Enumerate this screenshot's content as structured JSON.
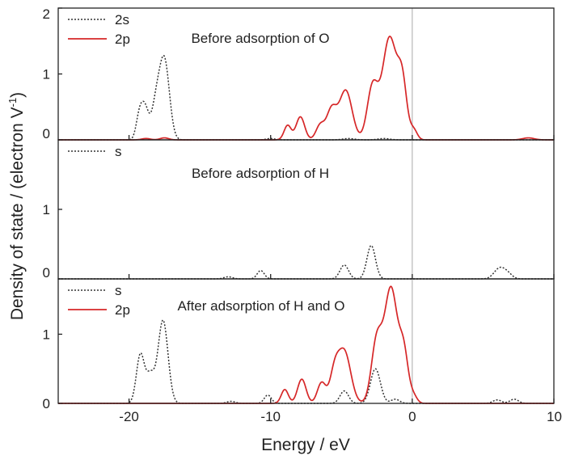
{
  "chart_data": {
    "type": "line",
    "xlabel": "Energy / eV",
    "ylabel": "Density of state / (electron V",
    "ylabel_sup": "-1",
    "ylabel_close": ")",
    "xlim": [
      -25,
      10
    ],
    "x_ticks": [
      -20,
      -10,
      0,
      10
    ],
    "x_tick_labels": [
      "-20",
      "-10",
      "0",
      "10"
    ],
    "fermi_level": 0,
    "colors": {
      "s_dotted": "#333333",
      "p_red": "#d62728",
      "frame": "#222222",
      "fermi_line": "#aaaaaa"
    },
    "panels": [
      {
        "title": "Before adsorption of O",
        "ylim": [
          0,
          2
        ],
        "y_ticks": [
          0,
          1,
          2
        ],
        "y_tick_labels": [
          "0",
          "1",
          "2"
        ],
        "legend": [
          {
            "label": "2s",
            "style": "dotted",
            "color": "#333333"
          },
          {
            "label": "2p",
            "style": "solid",
            "color": "#d62728"
          }
        ],
        "series": [
          {
            "name": "2s",
            "style": "dotted",
            "color": "#333333",
            "peaks": [
              [
                -19.3,
                0.28,
                0.22
              ],
              [
                -18.9,
                0.5,
                0.28
              ],
              [
                -18.1,
                0.5,
                0.3
              ],
              [
                -17.5,
                1.2,
                0.35
              ],
              [
                -10,
                0.02,
                0.3
              ],
              [
                -4.5,
                0.02,
                0.4
              ],
              [
                -2,
                0.02,
                0.4
              ]
            ]
          },
          {
            "name": "2p",
            "style": "solid",
            "color": "#d62728",
            "peaks": [
              [
                -18.8,
                0.02,
                0.3
              ],
              [
                -17.5,
                0.03,
                0.3
              ],
              [
                -8.8,
                0.22,
                0.25
              ],
              [
                -7.9,
                0.35,
                0.3
              ],
              [
                -6.5,
                0.22,
                0.3
              ],
              [
                -5.7,
                0.45,
                0.35
              ],
              [
                -4.7,
                0.75,
                0.45
              ],
              [
                -2.8,
                0.8,
                0.38
              ],
              [
                -1.6,
                1.55,
                0.5
              ],
              [
                -0.7,
                0.8,
                0.32
              ],
              [
                0.1,
                0.15,
                0.25
              ],
              [
                8.2,
                0.03,
                0.4
              ]
            ]
          }
        ]
      },
      {
        "title": "Before adsorption of H",
        "ylim": [
          0,
          2
        ],
        "y_ticks": [
          0,
          1
        ],
        "y_tick_labels": [
          "0",
          "1"
        ],
        "legend": [
          {
            "label": "s",
            "style": "dotted",
            "color": "#333333"
          }
        ],
        "series": [
          {
            "name": "s",
            "style": "dotted",
            "color": "#333333",
            "peaks": [
              [
                -13,
                0.03,
                0.3
              ],
              [
                -10.7,
                0.12,
                0.25
              ],
              [
                -4.8,
                0.2,
                0.3
              ],
              [
                -2.9,
                0.48,
                0.3
              ],
              [
                6.2,
                0.16,
                0.4
              ],
              [
                6.8,
                0.05,
                0.3
              ]
            ]
          }
        ]
      },
      {
        "title": "After adsorption of H and O",
        "ylim": [
          0,
          1.8
        ],
        "y_ticks": [
          0,
          1
        ],
        "y_tick_labels": [
          "0",
          "1"
        ],
        "legend": [
          {
            "label": "s",
            "style": "dotted",
            "color": "#333333"
          },
          {
            "label": "2p",
            "style": "solid",
            "color": "#d62728"
          }
        ],
        "series": [
          {
            "name": "s",
            "style": "dotted",
            "color": "#333333",
            "peaks": [
              [
                -19.2,
                0.7,
                0.28
              ],
              [
                -18.5,
                0.4,
                0.3
              ],
              [
                -17.6,
                1.2,
                0.35
              ],
              [
                -12.8,
                0.03,
                0.3
              ],
              [
                -10.2,
                0.12,
                0.25
              ],
              [
                -4.8,
                0.18,
                0.3
              ],
              [
                -2.6,
                0.5,
                0.35
              ],
              [
                -1.2,
                0.06,
                0.3
              ],
              [
                6,
                0.05,
                0.3
              ],
              [
                7.2,
                0.06,
                0.3
              ]
            ]
          },
          {
            "name": "2p",
            "style": "solid",
            "color": "#d62728",
            "peaks": [
              [
                -9,
                0.2,
                0.25
              ],
              [
                -7.8,
                0.35,
                0.3
              ],
              [
                -6.4,
                0.3,
                0.3
              ],
              [
                -5.5,
                0.4,
                0.32
              ],
              [
                -4.8,
                0.75,
                0.45
              ],
              [
                -2.5,
                0.9,
                0.38
              ],
              [
                -1.5,
                1.65,
                0.45
              ],
              [
                -0.6,
                0.7,
                0.32
              ],
              [
                0.1,
                0.1,
                0.25
              ]
            ]
          }
        ]
      }
    ]
  }
}
